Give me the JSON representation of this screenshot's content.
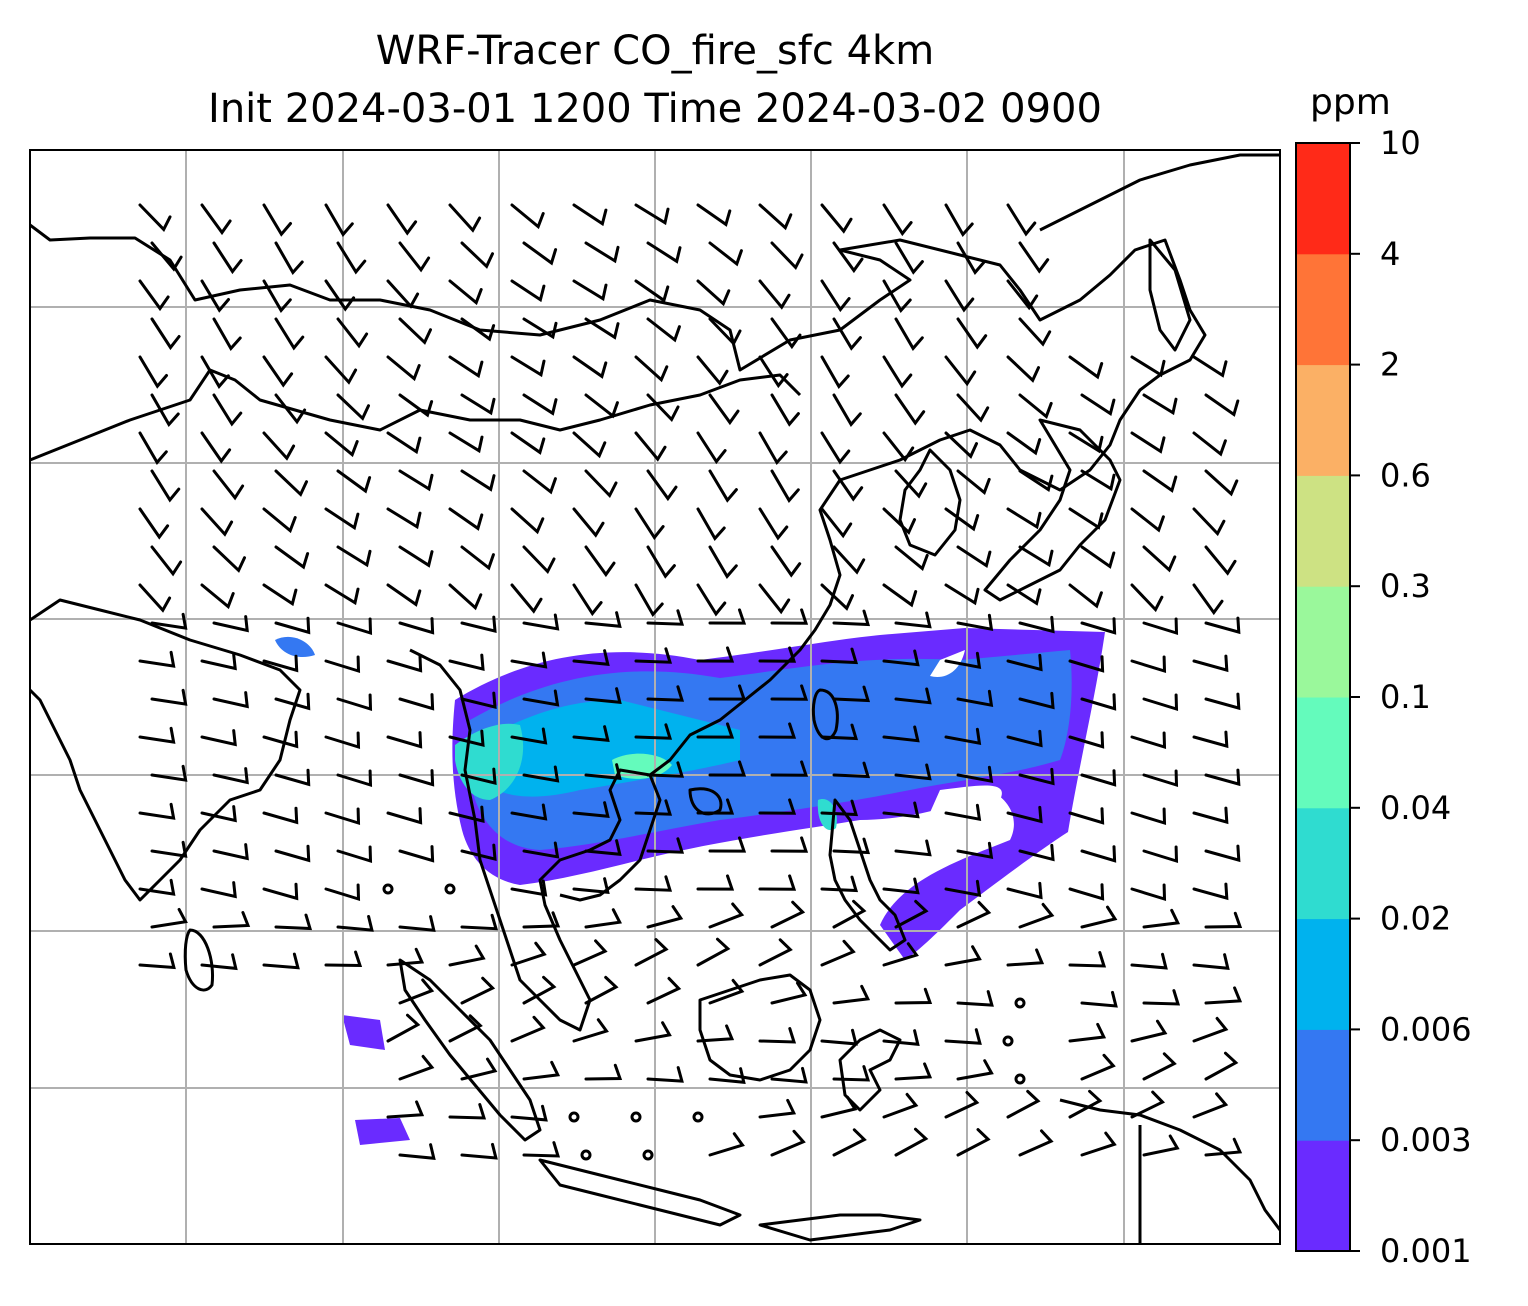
{
  "title_line1": "WRF-Tracer CO_fire_sfc 4km",
  "title_line2": "Init 2024-03-01 1200 Time 2024-03-02 0900",
  "colorbar": {
    "unit": "ppm",
    "levels": [
      "0.001",
      "0.003",
      "0.006",
      "0.02",
      "0.04",
      "0.1",
      "0.3",
      "0.6",
      "2",
      "4",
      "10"
    ],
    "colors": [
      "#6a2bff",
      "#3478f2",
      "#00b2ee",
      "#2fdcd0",
      "#64fbbc",
      "#9af89b",
      "#cde283",
      "#fbb065",
      "#ff7437",
      "#ff2a18"
    ]
  },
  "map": {
    "lon_range": [
      60,
      140
    ],
    "lat_range": [
      -12,
      45
    ],
    "gridline_color": "#b0b0b0",
    "coastline_color": "#000000"
  }
}
